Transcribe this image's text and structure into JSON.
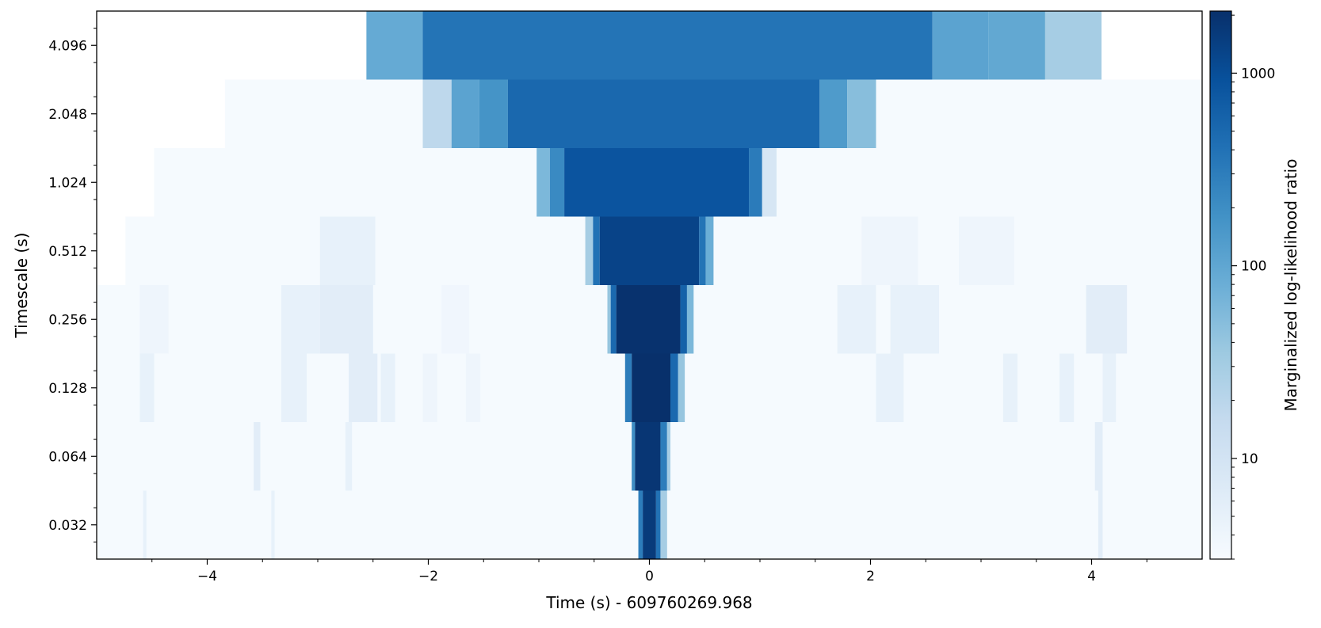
{
  "chart_data": {
    "type": "heatmap",
    "title": "",
    "xlabel": "Time (s) - 609760269.968",
    "ylabel": "Timescale (s)",
    "colorbar_label": "Marginalized log-likelihood ratio",
    "xlim": [
      -5,
      5
    ],
    "x_ticks": [
      -4,
      -2,
      0,
      2,
      4
    ],
    "x_tick_labels": [
      "−4",
      "−2",
      "0",
      "2",
      "4"
    ],
    "y_categories": [
      "0.032",
      "0.064",
      "0.128",
      "0.256",
      "0.512",
      "1.024",
      "2.048",
      "4.096"
    ],
    "colorbar_scale": "log",
    "colorbar_range": [
      3,
      2100
    ],
    "colorbar_ticks": [
      10,
      100,
      1000
    ],
    "colorbar_tick_labels": [
      "10",
      "100",
      "1000"
    ],
    "colormap": "Blues",
    "grid": false,
    "rows": [
      {
        "timescale": "4.096",
        "background_value": null,
        "segments": [
          {
            "t0": -2.56,
            "t1": -2.05,
            "value": 90
          },
          {
            "t0": -2.05,
            "t1": 2.56,
            "value": 380
          },
          {
            "t0": 2.56,
            "t1": 3.07,
            "value": 110
          },
          {
            "t0": 3.07,
            "t1": 3.58,
            "value": 95
          },
          {
            "t0": 3.58,
            "t1": 4.09,
            "value": 30
          }
        ]
      },
      {
        "timescale": "2.048",
        "background_value": 3.2,
        "background_range": [
          -3.84,
          5
        ],
        "segments": [
          {
            "t0": -2.05,
            "t1": -1.79,
            "value": 18
          },
          {
            "t0": -1.79,
            "t1": -1.54,
            "value": 110
          },
          {
            "t0": -1.54,
            "t1": -1.28,
            "value": 170
          },
          {
            "t0": -1.28,
            "t1": 1.54,
            "value": 520
          },
          {
            "t0": 1.54,
            "t1": 1.79,
            "value": 140
          },
          {
            "t0": 1.79,
            "t1": 2.05,
            "value": 50
          }
        ]
      },
      {
        "timescale": "1.024",
        "background_value": 3.2,
        "background_range": [
          -4.48,
          5
        ],
        "segments": [
          {
            "t0": -1.02,
            "t1": -0.9,
            "value": 60
          },
          {
            "t0": -0.9,
            "t1": -0.77,
            "value": 220
          },
          {
            "t0": -0.77,
            "t1": 0.9,
            "value": 850
          },
          {
            "t0": 0.9,
            "t1": 1.02,
            "value": 320
          },
          {
            "t0": 1.02,
            "t1": 1.15,
            "value": 9
          }
        ]
      },
      {
        "timescale": "0.512",
        "background_value": 3.2,
        "background_range": [
          -4.74,
          5
        ],
        "segments": [
          {
            "t0": -2.98,
            "t1": -2.48,
            "value": 5
          },
          {
            "t0": 1.92,
            "t1": 2.43,
            "value": 4
          },
          {
            "t0": 2.8,
            "t1": 3.3,
            "value": 4
          },
          {
            "t0": -0.58,
            "t1": -0.51,
            "value": 30
          },
          {
            "t0": -0.51,
            "t1": -0.45,
            "value": 400
          },
          {
            "t0": -0.45,
            "t1": 0.45,
            "value": 1300
          },
          {
            "t0": 0.45,
            "t1": 0.51,
            "value": 380
          },
          {
            "t0": 0.51,
            "t1": 0.58,
            "value": 80
          }
        ]
      },
      {
        "timescale": "0.256",
        "background_value": 3.2,
        "background_range": [
          -4.99,
          5
        ],
        "segments": [
          {
            "t0": -4.61,
            "t1": -4.35,
            "value": 4
          },
          {
            "t0": -3.33,
            "t1": -2.98,
            "value": 5
          },
          {
            "t0": -2.98,
            "t1": -2.5,
            "value": 6
          },
          {
            "t0": -1.88,
            "t1": -1.63,
            "value": 3.8
          },
          {
            "t0": 1.7,
            "t1": 2.05,
            "value": 5
          },
          {
            "t0": 2.18,
            "t1": 2.62,
            "value": 5
          },
          {
            "t0": 3.95,
            "t1": 4.32,
            "value": 6
          },
          {
            "t0": -0.38,
            "t1": -0.35,
            "value": 40
          },
          {
            "t0": -0.35,
            "t1": -0.3,
            "value": 500
          },
          {
            "t0": -0.3,
            "t1": 0.28,
            "value": 2000
          },
          {
            "t0": 0.28,
            "t1": 0.34,
            "value": 600
          },
          {
            "t0": 0.34,
            "t1": 0.4,
            "value": 60
          }
        ]
      },
      {
        "timescale": "0.128",
        "background_value": 3.2,
        "background_range": [
          -4.99,
          5
        ],
        "segments": [
          {
            "t0": -4.61,
            "t1": -4.48,
            "value": 5
          },
          {
            "t0": -3.33,
            "t1": -3.1,
            "value": 5
          },
          {
            "t0": -2.72,
            "t1": -2.46,
            "value": 6
          },
          {
            "t0": -2.43,
            "t1": -2.3,
            "value": 5
          },
          {
            "t0": -2.05,
            "t1": -1.92,
            "value": 4
          },
          {
            "t0": -1.66,
            "t1": -1.53,
            "value": 4
          },
          {
            "t0": 2.05,
            "t1": 2.3,
            "value": 5
          },
          {
            "t0": 3.2,
            "t1": 3.33,
            "value": 5
          },
          {
            "t0": 3.71,
            "t1": 3.84,
            "value": 5
          },
          {
            "t0": 4.1,
            "t1": 4.22,
            "value": 5
          },
          {
            "t0": -0.22,
            "t1": -0.16,
            "value": 300
          },
          {
            "t0": -0.16,
            "t1": 0.19,
            "value": 2100
          },
          {
            "t0": 0.19,
            "t1": 0.26,
            "value": 500
          },
          {
            "t0": 0.26,
            "t1": 0.32,
            "value": 40
          }
        ]
      },
      {
        "timescale": "0.064",
        "background_value": 3.2,
        "background_range": [
          -4.99,
          5
        ],
        "segments": [
          {
            "t0": -3.58,
            "t1": -3.52,
            "value": 6
          },
          {
            "t0": -2.75,
            "t1": -2.69,
            "value": 5
          },
          {
            "t0": 4.03,
            "t1": 4.1,
            "value": 6
          },
          {
            "t0": -0.16,
            "t1": -0.13,
            "value": 200
          },
          {
            "t0": -0.13,
            "t1": 0.1,
            "value": 1800
          },
          {
            "t0": 0.1,
            "t1": 0.16,
            "value": 300
          },
          {
            "t0": 0.16,
            "t1": 0.19,
            "value": 30
          }
        ]
      },
      {
        "timescale": "0.032",
        "background_value": 3.2,
        "background_range": [
          -4.99,
          5
        ],
        "segments": [
          {
            "t0": -4.58,
            "t1": -4.55,
            "value": 5
          },
          {
            "t0": -3.42,
            "t1": -3.39,
            "value": 5
          },
          {
            "t0": 4.06,
            "t1": 4.1,
            "value": 6
          },
          {
            "t0": -0.1,
            "t1": -0.06,
            "value": 300
          },
          {
            "t0": -0.06,
            "t1": 0.06,
            "value": 1600
          },
          {
            "t0": 0.06,
            "t1": 0.1,
            "value": 400
          },
          {
            "t0": 0.1,
            "t1": 0.16,
            "value": 30
          }
        ]
      }
    ]
  }
}
